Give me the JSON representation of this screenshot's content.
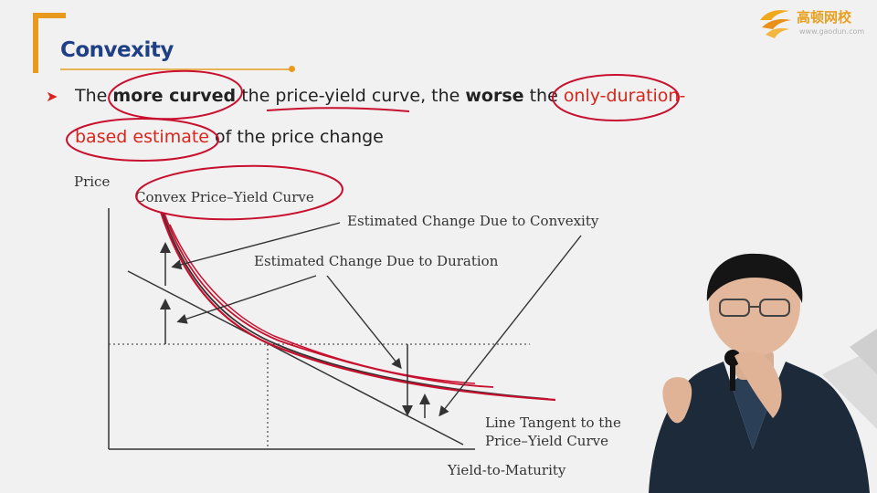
{
  "slide": {
    "title": "Convexity",
    "logo": {
      "name": "高顿网校",
      "url": "www.gaodun.com"
    },
    "bullet": {
      "t1": "The ",
      "t2": "more curved",
      "t3": " the ",
      "t4": "price-yield curve",
      "t5": ", the ",
      "t6": "worse",
      "t7": " the ",
      "t8": "only-duration-",
      "t9": "based estimate",
      "t10": " of the price change"
    }
  },
  "diagram": {
    "y_axis_label": "Price",
    "x_axis_label": "Yield-to-Maturity",
    "curve_label": "Convex Price–Yield Curve",
    "convexity_label": "Estimated Change Due to Convexity",
    "duration_label": "Estimated Change Due to Duration",
    "tangent_label_1": "Line Tangent to the",
    "tangent_label_2": "Price–Yield Curve"
  },
  "colors": {
    "accent": "#e89a1c",
    "title": "#1f3f86",
    "annotation": "#c8102e"
  }
}
